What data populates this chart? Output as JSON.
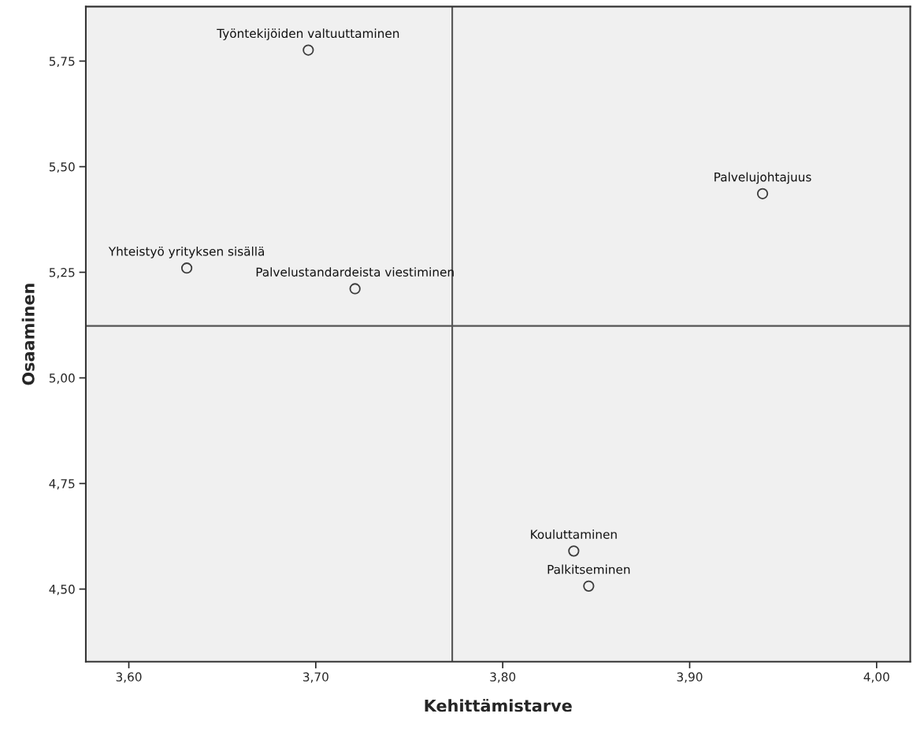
{
  "chart_data": {
    "type": "scatter",
    "xlabel": "Kehittämistarve",
    "ylabel": "Osaaminen",
    "x": [
      3.696,
      3.939,
      3.631,
      3.721,
      3.838,
      3.846
    ],
    "values": [
      5.776,
      5.436,
      5.26,
      5.211,
      4.59,
      4.507
    ],
    "value_labels": [
      "Työntekijöiden valtuuttaminen",
      "Palvelujohtajuus",
      "Yhteistyö yrityksen sisällä",
      "Palvelustandardeista viestiminen",
      "Kouluttaminen",
      "Palkitseminen"
    ],
    "color": "#3c3c3c",
    "marker": "circle",
    "xlim": [
      3.577,
      4.018
    ],
    "ylim": [
      4.328,
      5.879
    ],
    "xticks": [
      {
        "value": 3.6,
        "label": "3,60"
      },
      {
        "value": 3.7,
        "label": "3,70"
      },
      {
        "value": 3.8,
        "label": "3,80"
      },
      {
        "value": 3.9,
        "label": "3,90"
      },
      {
        "value": 4.0,
        "label": "4,00"
      }
    ],
    "yticks": [
      {
        "value": 4.5,
        "label": "4,50"
      },
      {
        "value": 4.75,
        "label": "4,75"
      },
      {
        "value": 5.0,
        "label": "5,00"
      },
      {
        "value": 5.25,
        "label": "5,25"
      },
      {
        "value": 5.5,
        "label": "5,50"
      },
      {
        "value": 5.75,
        "label": "5,75"
      }
    ],
    "ref_lines": [
      {
        "axis": "x",
        "value": 3.773,
        "color": "#555555"
      },
      {
        "axis": "y",
        "value": 5.123,
        "color": "#555555"
      }
    ],
    "grid": false,
    "legend": false
  }
}
